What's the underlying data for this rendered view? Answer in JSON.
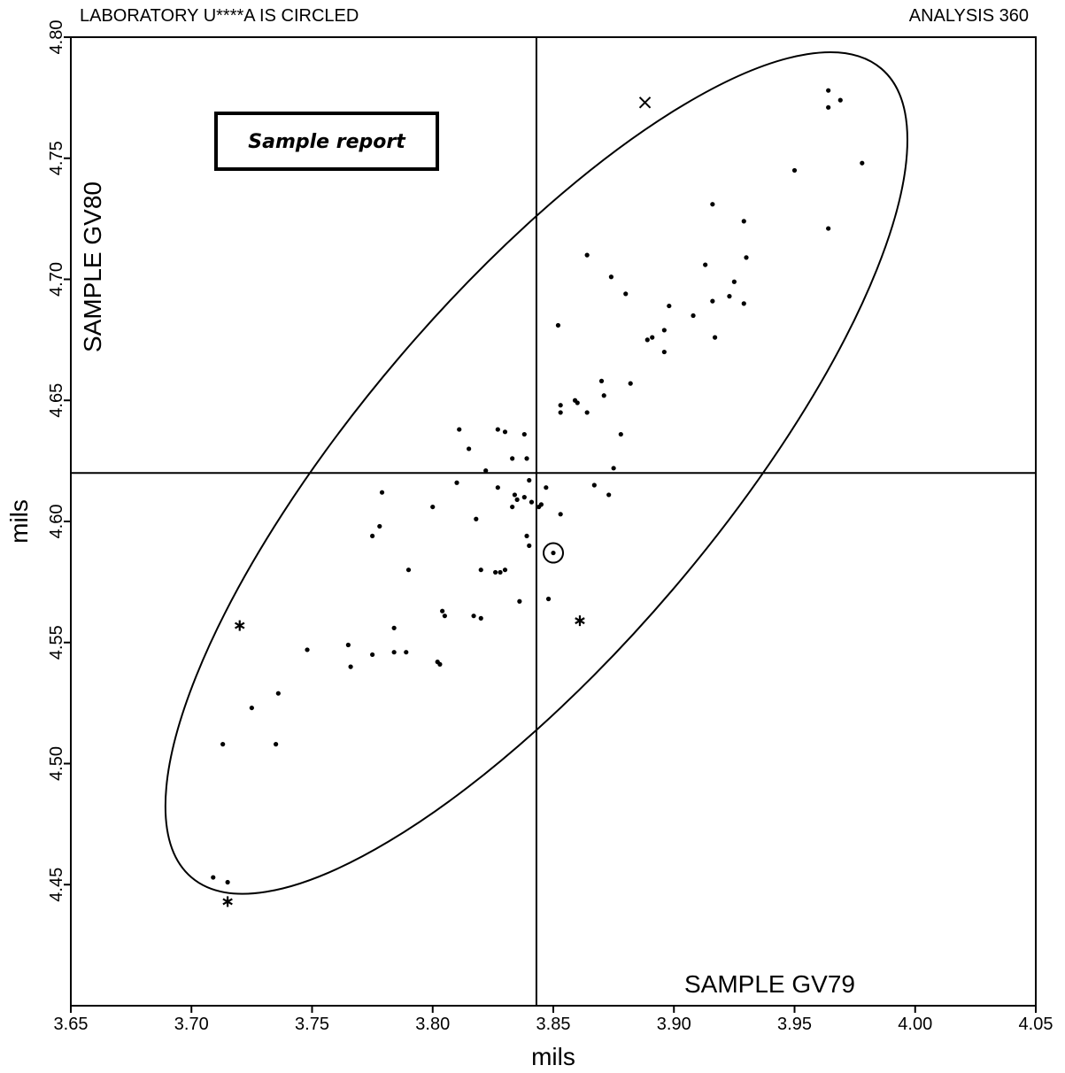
{
  "header": {
    "left": "LABORATORY U****A IS CIRCLED",
    "right": "ANALYSIS 360"
  },
  "chart_data": {
    "type": "scatter",
    "xlabel": "mils",
    "ylabel": "mils",
    "x_sample_label": "SAMPLE GV79",
    "y_sample_label": "SAMPLE GV80",
    "report_label": "Sample report",
    "xlim": [
      3.65,
      4.05
    ],
    "ylim": [
      4.4,
      4.8
    ],
    "x_ticks": [
      "3.65",
      "3.70",
      "3.75",
      "3.80",
      "3.85",
      "3.90",
      "3.95",
      "4.00",
      "4.05"
    ],
    "y_ticks": [
      "4.45",
      "4.50",
      "4.55",
      "4.60",
      "4.65",
      "4.70",
      "4.75",
      "4.80"
    ],
    "median_x": 3.843,
    "median_y": 4.62,
    "ellipse": {
      "center": [
        3.843,
        4.62
      ],
      "major_end_1": [
        3.699,
        4.452
      ],
      "major_end_2": [
        3.985,
        4.786
      ],
      "minor_end_1": [
        3.772,
        4.642
      ],
      "minor_end_2": [
        3.914,
        4.598
      ]
    },
    "circled_lab": [
      3.85,
      4.587
    ],
    "outliers_x": [
      [
        3.888,
        4.773
      ]
    ],
    "outliers_star": [
      [
        3.72,
        4.557
      ],
      [
        3.861,
        4.559
      ],
      [
        3.715,
        4.443
      ]
    ],
    "points": [
      [
        3.964,
        4.778
      ],
      [
        3.969,
        4.774
      ],
      [
        3.964,
        4.771
      ],
      [
        3.978,
        4.748
      ],
      [
        3.95,
        4.745
      ],
      [
        3.916,
        4.731
      ],
      [
        3.929,
        4.724
      ],
      [
        3.964,
        4.721
      ],
      [
        3.864,
        4.71
      ],
      [
        3.93,
        4.709
      ],
      [
        3.913,
        4.706
      ],
      [
        3.874,
        4.701
      ],
      [
        3.925,
        4.699
      ],
      [
        3.88,
        4.694
      ],
      [
        3.923,
        4.693
      ],
      [
        3.916,
        4.691
      ],
      [
        3.929,
        4.69
      ],
      [
        3.898,
        4.689
      ],
      [
        3.908,
        4.685
      ],
      [
        3.852,
        4.681
      ],
      [
        3.896,
        4.679
      ],
      [
        3.891,
        4.676
      ],
      [
        3.917,
        4.676
      ],
      [
        3.889,
        4.675
      ],
      [
        3.896,
        4.67
      ],
      [
        3.87,
        4.658
      ],
      [
        3.882,
        4.657
      ],
      [
        3.871,
        4.652
      ],
      [
        3.859,
        4.65
      ],
      [
        3.86,
        4.649
      ],
      [
        3.853,
        4.648
      ],
      [
        3.853,
        4.645
      ],
      [
        3.864,
        4.645
      ],
      [
        3.811,
        4.638
      ],
      [
        3.827,
        4.638
      ],
      [
        3.83,
        4.637
      ],
      [
        3.838,
        4.636
      ],
      [
        3.878,
        4.636
      ],
      [
        3.815,
        4.63
      ],
      [
        3.833,
        4.626
      ],
      [
        3.839,
        4.626
      ],
      [
        3.875,
        4.622
      ],
      [
        3.822,
        4.621
      ],
      [
        3.84,
        4.617
      ],
      [
        3.81,
        4.616
      ],
      [
        3.867,
        4.615
      ],
      [
        3.827,
        4.614
      ],
      [
        3.847,
        4.614
      ],
      [
        3.779,
        4.612
      ],
      [
        3.834,
        4.611
      ],
      [
        3.873,
        4.611
      ],
      [
        3.835,
        4.609
      ],
      [
        3.838,
        4.61
      ],
      [
        3.841,
        4.608
      ],
      [
        3.845,
        4.607
      ],
      [
        3.833,
        4.606
      ],
      [
        3.844,
        4.606
      ],
      [
        3.8,
        4.606
      ],
      [
        3.853,
        4.603
      ],
      [
        3.818,
        4.601
      ],
      [
        3.778,
        4.598
      ],
      [
        3.775,
        4.594
      ],
      [
        3.839,
        4.594
      ],
      [
        3.84,
        4.59
      ],
      [
        3.79,
        4.58
      ],
      [
        3.82,
        4.58
      ],
      [
        3.826,
        4.579
      ],
      [
        3.83,
        4.58
      ],
      [
        3.828,
        4.579
      ],
      [
        3.848,
        4.568
      ],
      [
        3.836,
        4.567
      ],
      [
        3.804,
        4.563
      ],
      [
        3.805,
        4.561
      ],
      [
        3.817,
        4.561
      ],
      [
        3.82,
        4.56
      ],
      [
        3.784,
        4.556
      ],
      [
        3.765,
        4.549
      ],
      [
        3.748,
        4.547
      ],
      [
        3.784,
        4.546
      ],
      [
        3.789,
        4.546
      ],
      [
        3.775,
        4.545
      ],
      [
        3.802,
        4.542
      ],
      [
        3.803,
        4.541
      ],
      [
        3.766,
        4.54
      ],
      [
        3.736,
        4.529
      ],
      [
        3.725,
        4.523
      ],
      [
        3.713,
        4.508
      ],
      [
        3.735,
        4.508
      ],
      [
        3.709,
        4.453
      ],
      [
        3.715,
        4.451
      ]
    ]
  }
}
